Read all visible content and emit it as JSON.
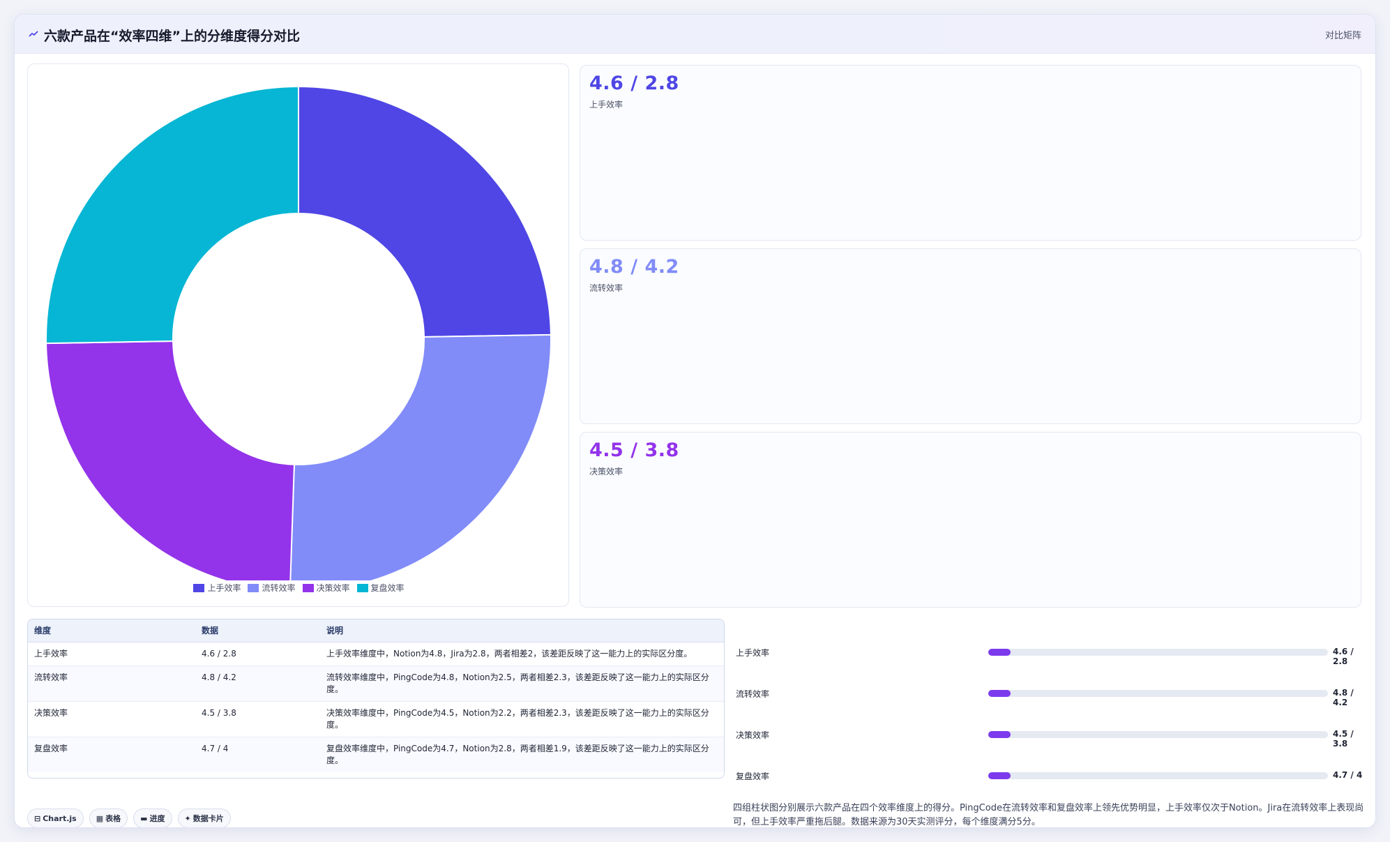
{
  "header": {
    "icon": "trend-icon",
    "title": "六款产品在“效率四维”上的分维度得分对比",
    "tag": "对比矩阵"
  },
  "chart_data": {
    "type": "pie",
    "donut": true,
    "categories": [
      "上手效率",
      "流转效率",
      "决策效率",
      "复盘效率"
    ],
    "values": [
      4.6,
      4.8,
      4.5,
      4.7
    ],
    "colors": [
      "#4f46e5",
      "#818cf8",
      "#9333ea",
      "#06b6d4"
    ],
    "legend_position": "bottom"
  },
  "stats": [
    {
      "value": "4.6 / 2.8",
      "label": "上手效率",
      "color": "#4f46e5"
    },
    {
      "value": "4.8 / 4.2",
      "label": "流转效率",
      "color": "#818cf8"
    },
    {
      "value": "4.5 / 3.8",
      "label": "决策效率",
      "color": "#9333ea"
    }
  ],
  "table": {
    "headers": [
      "维度",
      "数据",
      "说明"
    ],
    "rows": [
      [
        "上手效率",
        "4.6 / 2.8",
        "上手效率维度中，Notion为4.8，Jira为2.8，两者相差2，该差距反映了这一能力上的实际区分度。"
      ],
      [
        "流转效率",
        "4.8 / 4.2",
        "流转效率维度中，PingCode为4.8，Notion为2.5，两者相差2.3，该差距反映了这一能力上的实际区分度。"
      ],
      [
        "决策效率",
        "4.5 / 3.8",
        "决策效率维度中，PingCode为4.5，Notion为2.2，两者相差2.3，该差距反映了这一能力上的实际区分度。"
      ],
      [
        "复盘效率",
        "4.7 / 4",
        "复盘效率维度中，PingCode为4.7，Notion为2.8，两者相差1.9，该差距反映了这一能力上的实际区分度。"
      ]
    ]
  },
  "chips": [
    {
      "icon": "chart-icon",
      "glyph": "⊟",
      "label": "Chart.js"
    },
    {
      "icon": "table-icon",
      "glyph": "▦",
      "label": "表格"
    },
    {
      "icon": "progress-icon",
      "glyph": "▬",
      "label": "进度"
    },
    {
      "icon": "card-icon",
      "glyph": "✦",
      "label": "数据卡片"
    }
  ],
  "progress": [
    {
      "label": "上手效率",
      "value": "4.6 / 2.8",
      "fill": 0.065
    },
    {
      "label": "流转效率",
      "value": "4.8 / 4.2",
      "fill": 0.065
    },
    {
      "label": "决策效率",
      "value": "4.5 / 3.8",
      "fill": 0.065
    },
    {
      "label": "复盘效率",
      "value": "4.7 / 4",
      "fill": 0.065
    }
  ],
  "summary": "四组柱状图分别展示六款产品在四个效率维度上的得分。PingCode在流转效率和复盘效率上领先优势明显，上手效率仅次于Notion。Jira在流转效率上表现尚可，但上手效率严重拖后腿。数据来源为30天实测评分，每个维度满分5分。"
}
